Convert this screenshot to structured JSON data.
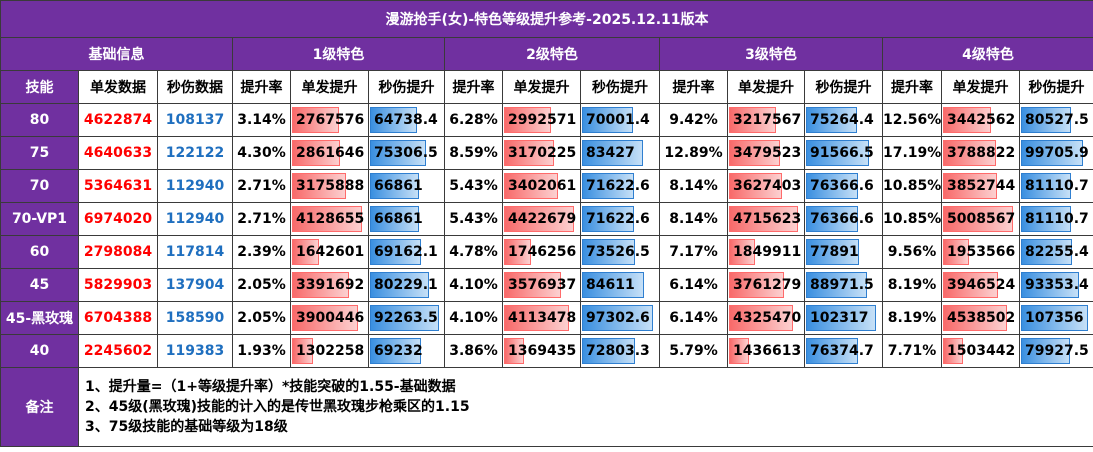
{
  "title": "漫游抢手(女)-特色等级提升参考-2025.12.11版本",
  "groups": {
    "base": "基础信息",
    "l1": "1级特色",
    "l2": "2级特色",
    "l3": "3级特色",
    "l4": "4级特色"
  },
  "subheaders": {
    "skill": "技能",
    "single": "单发数据",
    "dps": "秒伤数据",
    "l1_rate": "提升率",
    "l1_single": "单发提升",
    "l1_dps": "秒伤提升",
    "l2_rate": "提升率",
    "l2_single": "单发提升",
    "l2_dps": "秒伤提升",
    "l3_rate": "提升率",
    "l3_single": "单发提升",
    "l3_dps": "秒伤提升",
    "l4_rate": "提升率",
    "l4_single": "单发提升",
    "l4_dps": "秒伤提升"
  },
  "rows": [
    {
      "skill": "80",
      "single": "4622874",
      "dps": "108137",
      "l1": {
        "rate": "3.14%",
        "single": "2767576",
        "single_val": 2767576,
        "dps": "64738.4",
        "dps_val": 64738.4
      },
      "l2": {
        "rate": "6.28%",
        "single": "2992571",
        "single_val": 2992571,
        "dps": "70001.4",
        "dps_val": 70001.4
      },
      "l3": {
        "rate": "9.42%",
        "single": "3217567",
        "single_val": 3217567,
        "dps": "75264.4",
        "dps_val": 75264.4
      },
      "l4": {
        "rate": "12.56%",
        "single": "3442562",
        "single_val": 3442562,
        "dps": "80527.5",
        "dps_val": 80527.5
      }
    },
    {
      "skill": "75",
      "single": "4640633",
      "dps": "122122",
      "l1": {
        "rate": "4.30%",
        "single": "2861646",
        "single_val": 2861646,
        "dps": "75306.5",
        "dps_val": 75306.5
      },
      "l2": {
        "rate": "8.59%",
        "single": "3170225",
        "single_val": 3170225,
        "dps": "83427",
        "dps_val": 83427
      },
      "l3": {
        "rate": "12.89%",
        "single": "3479523",
        "single_val": 3479523,
        "dps": "91566.5",
        "dps_val": 91566.5
      },
      "l4": {
        "rate": "17.19%",
        "single": "3788822",
        "single_val": 3788822,
        "dps": "99705.9",
        "dps_val": 99705.9
      }
    },
    {
      "skill": "70",
      "single": "5364631",
      "dps": "112940",
      "l1": {
        "rate": "2.71%",
        "single": "3175888",
        "single_val": 3175888,
        "dps": "66861",
        "dps_val": 66861
      },
      "l2": {
        "rate": "5.43%",
        "single": "3402061",
        "single_val": 3402061,
        "dps": "71622.6",
        "dps_val": 71622.6
      },
      "l3": {
        "rate": "8.14%",
        "single": "3627403",
        "single_val": 3627403,
        "dps": "76366.6",
        "dps_val": 76366.6
      },
      "l4": {
        "rate": "10.85%",
        "single": "3852744",
        "single_val": 3852744,
        "dps": "81110.7",
        "dps_val": 81110.7
      }
    },
    {
      "skill": "70-VP1",
      "single": "6974020",
      "dps": "112940",
      "l1": {
        "rate": "2.71%",
        "single": "4128655",
        "single_val": 4128655,
        "dps": "66861",
        "dps_val": 66861
      },
      "l2": {
        "rate": "5.43%",
        "single": "4422679",
        "single_val": 4422679,
        "dps": "71622.6",
        "dps_val": 71622.6
      },
      "l3": {
        "rate": "8.14%",
        "single": "4715623",
        "single_val": 4715623,
        "dps": "76366.6",
        "dps_val": 76366.6
      },
      "l4": {
        "rate": "10.85%",
        "single": "5008567",
        "single_val": 5008567,
        "dps": "81110.7",
        "dps_val": 81110.7
      }
    },
    {
      "skill": "60",
      "single": "2798084",
      "dps": "117814",
      "l1": {
        "rate": "2.39%",
        "single": "1642601",
        "single_val": 1642601,
        "dps": "69162.1",
        "dps_val": 69162.1
      },
      "l2": {
        "rate": "4.78%",
        "single": "1746256",
        "single_val": 1746256,
        "dps": "73526.5",
        "dps_val": 73526.5
      },
      "l3": {
        "rate": "7.17%",
        "single": "1849911",
        "single_val": 1849911,
        "dps": "77891",
        "dps_val": 77891
      },
      "l4": {
        "rate": "9.56%",
        "single": "1953566",
        "single_val": 1953566,
        "dps": "82255.4",
        "dps_val": 82255.4
      }
    },
    {
      "skill": "45",
      "single": "5829903",
      "dps": "137904",
      "l1": {
        "rate": "2.05%",
        "single": "3391692",
        "single_val": 3391692,
        "dps": "80229.1",
        "dps_val": 80229.1
      },
      "l2": {
        "rate": "4.10%",
        "single": "3576937",
        "single_val": 3576937,
        "dps": "84611",
        "dps_val": 84611
      },
      "l3": {
        "rate": "6.14%",
        "single": "3761279",
        "single_val": 3761279,
        "dps": "88971.5",
        "dps_val": 88971.5
      },
      "l4": {
        "rate": "8.19%",
        "single": "3946524",
        "single_val": 3946524,
        "dps": "93353.4",
        "dps_val": 93353.4
      }
    },
    {
      "skill": "45-黑玫瑰",
      "single": "6704388",
      "dps": "158590",
      "l1": {
        "rate": "2.05%",
        "single": "3900446",
        "single_val": 3900446,
        "dps": "92263.5",
        "dps_val": 92263.5
      },
      "l2": {
        "rate": "4.10%",
        "single": "4113478",
        "single_val": 4113478,
        "dps": "97302.6",
        "dps_val": 97302.6
      },
      "l3": {
        "rate": "6.14%",
        "single": "4325470",
        "single_val": 4325470,
        "dps": "102317",
        "dps_val": 102317
      },
      "l4": {
        "rate": "8.19%",
        "single": "4538502",
        "single_val": 4538502,
        "dps": "107356",
        "dps_val": 107356
      }
    },
    {
      "skill": "40",
      "single": "2245602",
      "dps": "119383",
      "l1": {
        "rate": "1.93%",
        "single": "1302258",
        "single_val": 1302258,
        "dps": "69232",
        "dps_val": 69232
      },
      "l2": {
        "rate": "3.86%",
        "single": "1369435",
        "single_val": 1369435,
        "dps": "72803.3",
        "dps_val": 72803.3
      },
      "l3": {
        "rate": "5.79%",
        "single": "1436613",
        "single_val": 1436613,
        "dps": "76374.7",
        "dps_val": 76374.7
      },
      "l4": {
        "rate": "7.71%",
        "single": "1503442",
        "single_val": 1503442,
        "dps": "79927.5",
        "dps_val": 79927.5
      }
    }
  ],
  "notes": {
    "label": "备注",
    "lines": [
      "1、提升量=（1+等级提升率）*技能突破的1.55-基础数据",
      "2、45级(黑玫瑰)技能的计入的是传世黑玫瑰步枪乘区的1.15",
      "3、75级技能的基础等级为18级"
    ]
  },
  "colors": {
    "header_bg": "#7030a0",
    "header_text": "#ffffff",
    "single_text": "#ff0000",
    "dps_text": "#1f6fbf",
    "single_bar": "#f86a6a",
    "dps_bar": "#3a8fe0"
  }
}
